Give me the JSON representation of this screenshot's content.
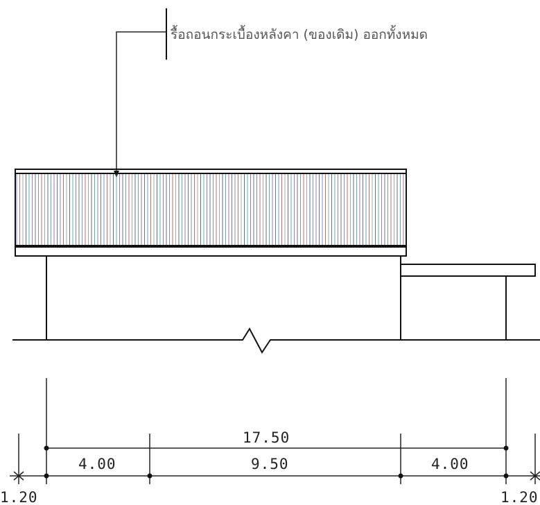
{
  "note": {
    "text": "รื้อถอนกระเบื้องหลังคา (ของเดิม) ออกทั้งหมด"
  },
  "dimensions": {
    "total": "17.50",
    "segments": [
      "4.00",
      "9.50",
      "4.00"
    ],
    "left_overhang": "1.20",
    "right_overhang": "1.20"
  },
  "colors": {
    "stroke": "#111111",
    "roof_stripes": [
      "#4a6fc0",
      "#c0392b",
      "#7f8c8d",
      "#2c3e50",
      "#16a085",
      "#8e44ad",
      "#34495e"
    ]
  }
}
